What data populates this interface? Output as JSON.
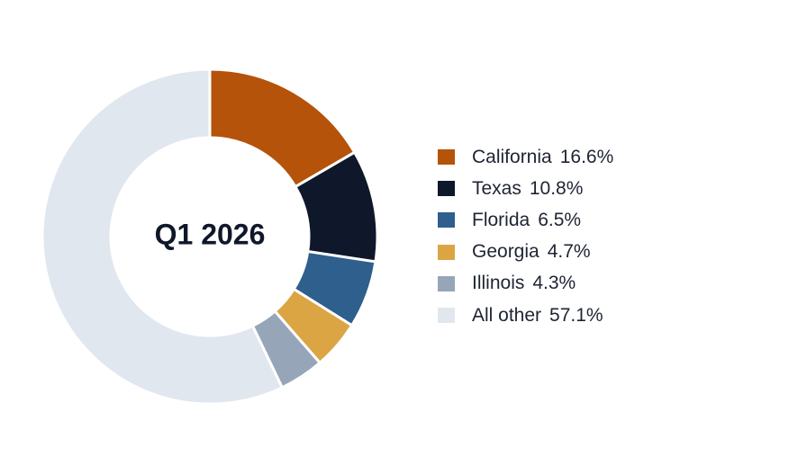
{
  "chart_data": {
    "type": "pie",
    "center_label": "Q1 2026",
    "legend_position": "right",
    "slices": [
      {
        "label": "California",
        "value": 16.6,
        "display": "16.6%",
        "color": "#b5530a"
      },
      {
        "label": "Texas",
        "value": 10.8,
        "display": "10.8%",
        "color": "#0f172a"
      },
      {
        "label": "Florida",
        "value": 6.5,
        "display": "6.5%",
        "color": "#2f5f8c"
      },
      {
        "label": "Georgia",
        "value": 4.7,
        "display": "4.7%",
        "color": "#dba544"
      },
      {
        "label": "Illinois",
        "value": 4.3,
        "display": "4.3%",
        "color": "#97a5b9"
      },
      {
        "label": "All other",
        "value": 57.1,
        "display": "57.1%",
        "color": "#e1e7ef"
      }
    ]
  }
}
